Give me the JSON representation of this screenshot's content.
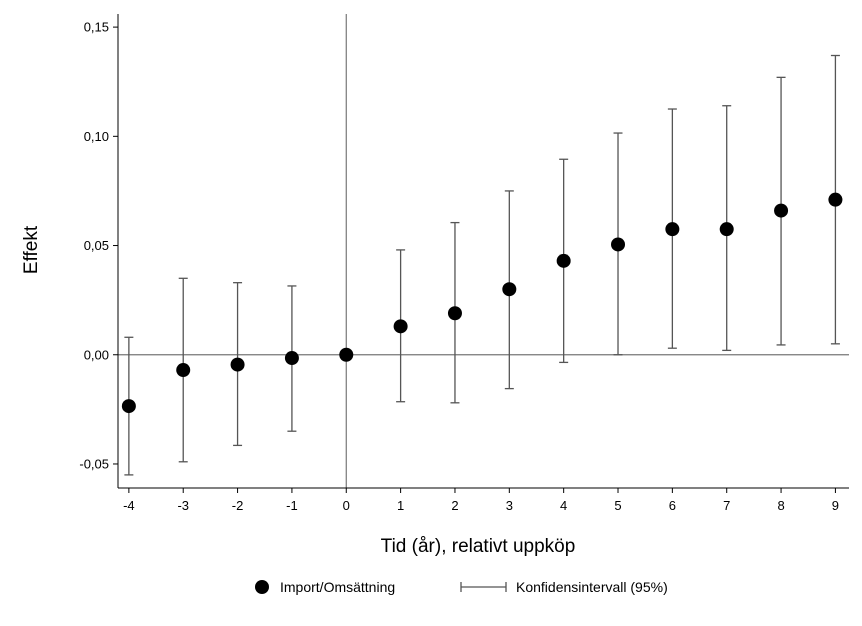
{
  "chart_data": {
    "type": "scatter",
    "title": "",
    "xlabel": "Tid (år), relativt uppköp",
    "ylabel": "Effekt",
    "xlim": [
      -4.2,
      9.25
    ],
    "ylim": [
      -0.061,
      0.156
    ],
    "xticks": [
      -4,
      -3,
      -2,
      -1,
      0,
      1,
      2,
      3,
      4,
      5,
      6,
      7,
      8,
      9
    ],
    "xtick_labels": [
      "-4",
      "-3",
      "-2",
      "-1",
      "0",
      "1",
      "2",
      "3",
      "4",
      "5",
      "6",
      "7",
      "8",
      "9"
    ],
    "yticks": [
      -0.05,
      0,
      0.05,
      0.1,
      0.15
    ],
    "ytick_labels": [
      "-0,05",
      "0,00",
      "0,05",
      "0,10",
      "0,15"
    ],
    "reference_lines": {
      "x": 0,
      "y": 0
    },
    "grid": false,
    "legend_position": "bottom",
    "series": [
      {
        "name": "Import/Omsättning",
        "marker": "circle",
        "color": "#000000",
        "points": [
          {
            "x": -4,
            "y": -0.0235
          },
          {
            "x": -3,
            "y": -0.007
          },
          {
            "x": -2,
            "y": -0.0045
          },
          {
            "x": -1,
            "y": -0.0015
          },
          {
            "x": 0,
            "y": 0.0
          },
          {
            "x": 1,
            "y": 0.013
          },
          {
            "x": 2,
            "y": 0.019
          },
          {
            "x": 3,
            "y": 0.03
          },
          {
            "x": 4,
            "y": 0.043
          },
          {
            "x": 5,
            "y": 0.0505
          },
          {
            "x": 6,
            "y": 0.0575
          },
          {
            "x": 7,
            "y": 0.0575
          },
          {
            "x": 8,
            "y": 0.066
          },
          {
            "x": 9,
            "y": 0.071
          }
        ]
      },
      {
        "name": "Konfidensintervall (95%)",
        "marker": "errorbar",
        "color": "#555555",
        "intervals": [
          {
            "x": -4,
            "lower": -0.055,
            "upper": 0.008
          },
          {
            "x": -3,
            "lower": -0.049,
            "upper": 0.035
          },
          {
            "x": -2,
            "lower": -0.0415,
            "upper": 0.033
          },
          {
            "x": -1,
            "lower": -0.035,
            "upper": 0.0315
          },
          {
            "x": 1,
            "lower": -0.0215,
            "upper": 0.048
          },
          {
            "x": 2,
            "lower": -0.022,
            "upper": 0.0605
          },
          {
            "x": 3,
            "lower": -0.0155,
            "upper": 0.075
          },
          {
            "x": 4,
            "lower": -0.0035,
            "upper": 0.0895
          },
          {
            "x": 5,
            "lower": 0.0,
            "upper": 0.1015
          },
          {
            "x": 6,
            "lower": 0.003,
            "upper": 0.1125
          },
          {
            "x": 7,
            "lower": 0.002,
            "upper": 0.114
          },
          {
            "x": 8,
            "lower": 0.0045,
            "upper": 0.127
          },
          {
            "x": 9,
            "lower": 0.005,
            "upper": 0.137
          }
        ]
      }
    ]
  }
}
